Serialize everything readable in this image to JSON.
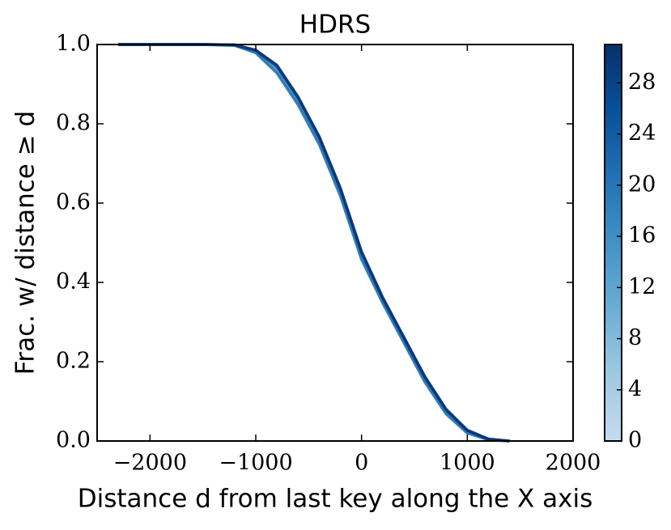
{
  "chart_data": {
    "type": "line",
    "title": "HDRS",
    "xlabel": "Distance d from last key along the X axis",
    "ylabel": "Frac. w/ distance ≥ d",
    "xlim": [
      -2500,
      2000
    ],
    "ylim": [
      0,
      1
    ],
    "xticks": [
      {
        "value": -2000,
        "label": "−2000"
      },
      {
        "value": -1000,
        "label": "−1000"
      },
      0,
      1000,
      2000
    ],
    "yticks": [
      {
        "value": 0,
        "label": "0.0"
      },
      {
        "value": 0.2,
        "label": "0.2"
      },
      {
        "value": 0.4,
        "label": "0.4"
      },
      {
        "value": 0.6,
        "label": "0.6"
      },
      {
        "value": 0.8,
        "label": "0.8"
      },
      {
        "value": 1,
        "label": "1.0"
      }
    ],
    "x": [
      -2300,
      -1500,
      -1200,
      -1000,
      -800,
      -600,
      -400,
      -200,
      0,
      200,
      400,
      600,
      800,
      1000,
      1200,
      1400
    ],
    "series": [
      {
        "color": "#c6dbef",
        "values": [
          1,
          1,
          0.998,
          0.98,
          0.93,
          0.86,
          0.76,
          0.63,
          0.47,
          0.36,
          0.26,
          0.16,
          0.08,
          0.03,
          0.004,
          0
        ]
      },
      {
        "color": "#9ecae1",
        "values": [
          1,
          1,
          0.997,
          0.98,
          0.93,
          0.85,
          0.75,
          0.62,
          0.46,
          0.35,
          0.25,
          0.15,
          0.07,
          0.02,
          0.003,
          0
        ]
      },
      {
        "color": "#6baed6",
        "values": [
          1,
          1,
          0.998,
          0.981,
          0.935,
          0.855,
          0.755,
          0.625,
          0.465,
          0.352,
          0.252,
          0.152,
          0.072,
          0.022,
          0.003,
          0
        ]
      },
      {
        "color": "#4292c6",
        "values": [
          1,
          1,
          0.999,
          0.982,
          0.94,
          0.86,
          0.76,
          0.63,
          0.47,
          0.355,
          0.255,
          0.155,
          0.075,
          0.025,
          0.004,
          0
        ]
      },
      {
        "color": "#2171b5",
        "values": [
          1,
          1,
          0.998,
          0.979,
          0.928,
          0.848,
          0.748,
          0.618,
          0.458,
          0.348,
          0.248,
          0.148,
          0.068,
          0.02,
          0.003,
          0
        ]
      },
      {
        "color": "#08519c",
        "values": [
          1,
          1,
          0.999,
          0.985,
          0.945,
          0.865,
          0.765,
          0.635,
          0.475,
          0.36,
          0.26,
          0.16,
          0.078,
          0.026,
          0.004,
          0
        ]
      },
      {
        "color": "#08306b",
        "values": [
          1,
          1,
          0.999,
          0.986,
          0.948,
          0.868,
          0.768,
          0.638,
          0.478,
          0.362,
          0.262,
          0.162,
          0.08,
          0.027,
          0.005,
          0
        ]
      }
    ],
    "colorbar": {
      "clim": [
        0,
        31
      ],
      "cticks": [
        0,
        4,
        8,
        12,
        16,
        20,
        24,
        28
      ],
      "colormap": [
        "#c6dbef",
        "#9ecae1",
        "#6baed6",
        "#4292c6",
        "#2171b5",
        "#08519c",
        "#08306b"
      ]
    }
  }
}
